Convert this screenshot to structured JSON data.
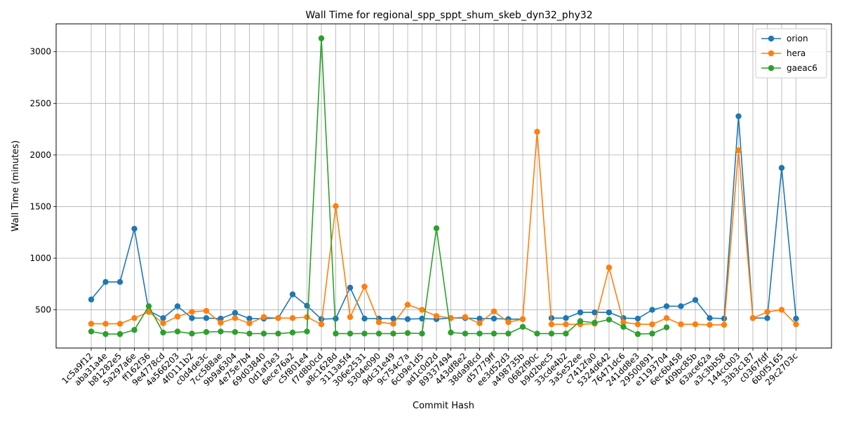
{
  "chart_data": {
    "type": "line",
    "title": "Wall Time for regional_spp_sppt_shum_skeb_dyn32_phy32",
    "xlabel": "Commit Hash",
    "ylabel": "Wall Time (minutes)",
    "ylim": [
      130,
      3270
    ],
    "yticks": [
      500,
      1000,
      1500,
      2000,
      2500,
      3000
    ],
    "grid": true,
    "legend_position": "top-right",
    "categories": [
      "1c5a9f12",
      "aba31a4e",
      "b81282e5",
      "5a297a6e",
      "ff162f36",
      "9e4778cd",
      "4a566203",
      "4f0111b2",
      "c0d4de3c",
      "7cc588ae",
      "9b9a6304",
      "4e75e7b4",
      "69d03840",
      "0d1af3e3",
      "6ece76a2",
      "c5f801e4",
      "f7d8b0cd",
      "a8c1628d",
      "3113a5f4",
      "306e2531",
      "5304e090",
      "9dc31e49",
      "9c754c7a",
      "6cb9e1d5",
      "ad1c0d2d",
      "89337494",
      "443df8e2",
      "38da98cd",
      "d57779ff",
      "ee3d52d3",
      "a498735b",
      "0682f90c",
      "b9d2bec5",
      "33cde4b2",
      "3a5e52ee",
      "c7412fa0",
      "5324d642",
      "76471dc6",
      "241dd8e3",
      "29500891",
      "e1193704",
      "6ec6b458",
      "409bc85b",
      "63ace62a",
      "a3c3bb58",
      "144ccb03",
      "33b3c187",
      "c0367fdf",
      "6b0f5165",
      "29c2703c"
    ],
    "series": [
      {
        "name": "orion",
        "color": "#1f77b4",
        "values": [
          600,
          770,
          770,
          1285,
          490,
          420,
          535,
          420,
          420,
          415,
          470,
          415,
          415,
          420,
          650,
          540,
          410,
          415,
          715,
          415,
          415,
          415,
          410,
          415,
          410,
          420,
          420,
          415,
          415,
          410,
          410,
          null,
          420,
          420,
          475,
          475,
          475,
          420,
          415,
          500,
          535,
          535,
          595,
          420,
          415,
          2375,
          420,
          420,
          1875,
          415
        ]
      },
      {
        "name": "hera",
        "color": "#ff7f0e",
        "values": [
          365,
          365,
          365,
          420,
          480,
          370,
          435,
          480,
          490,
          375,
          420,
          370,
          430,
          420,
          420,
          430,
          360,
          1505,
          430,
          725,
          380,
          365,
          550,
          500,
          440,
          420,
          430,
          370,
          485,
          380,
          410,
          2225,
          360,
          360,
          360,
          365,
          910,
          380,
          360,
          360,
          420,
          360,
          360,
          355,
          355,
          2045,
          420,
          480,
          500,
          360
        ]
      },
      {
        "name": "gaeac6",
        "color": "#2ca02c",
        "values": [
          290,
          265,
          265,
          305,
          535,
          280,
          290,
          270,
          285,
          290,
          285,
          270,
          270,
          270,
          280,
          290,
          3130,
          270,
          270,
          270,
          270,
          270,
          275,
          270,
          1290,
          280,
          270,
          270,
          270,
          270,
          335,
          270,
          270,
          270,
          390,
          375,
          405,
          335,
          265,
          270,
          330,
          null,
          null,
          null,
          null,
          null,
          null,
          null,
          null,
          null
        ]
      }
    ]
  }
}
